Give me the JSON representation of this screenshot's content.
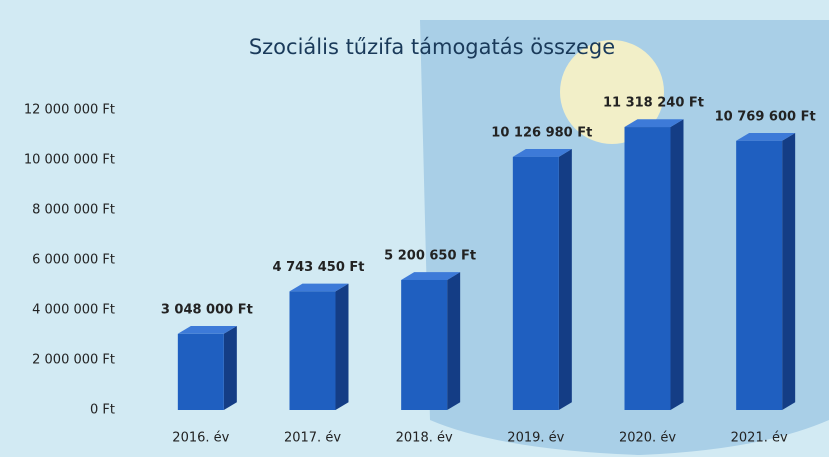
{
  "chart_data": {
    "type": "bar3d",
    "title": "Szociális tűzifa támogatás összege",
    "categories": [
      "2016. év",
      "2017. év",
      "2018. év",
      "2019. év",
      "2020. év",
      "2021. év"
    ],
    "values": [
      3048000,
      4743450,
      5200650,
      10126980,
      11318240,
      10769600
    ],
    "value_labels": [
      "3 048 000 Ft",
      "4 743 450 Ft",
      "5 200 650 Ft",
      "10 126 980 Ft",
      "11 318 240 Ft",
      "10 769 600 Ft"
    ],
    "color": "#1f5fc0",
    "ylim": [
      0,
      12000000
    ],
    "yticks": [
      {
        "value": 0,
        "label": "0 Ft"
      },
      {
        "value": 2000000,
        "label": "2 000 000 Ft"
      },
      {
        "value": 4000000,
        "label": "4 000 000 Ft"
      },
      {
        "value": 6000000,
        "label": "6 000 000 Ft"
      },
      {
        "value": 8000000,
        "label": "8 000 000 Ft"
      },
      {
        "value": 10000000,
        "label": "10 000 000 Ft"
      },
      {
        "value": 12000000,
        "label": "12 000 000 Ft"
      }
    ],
    "grid": false
  }
}
